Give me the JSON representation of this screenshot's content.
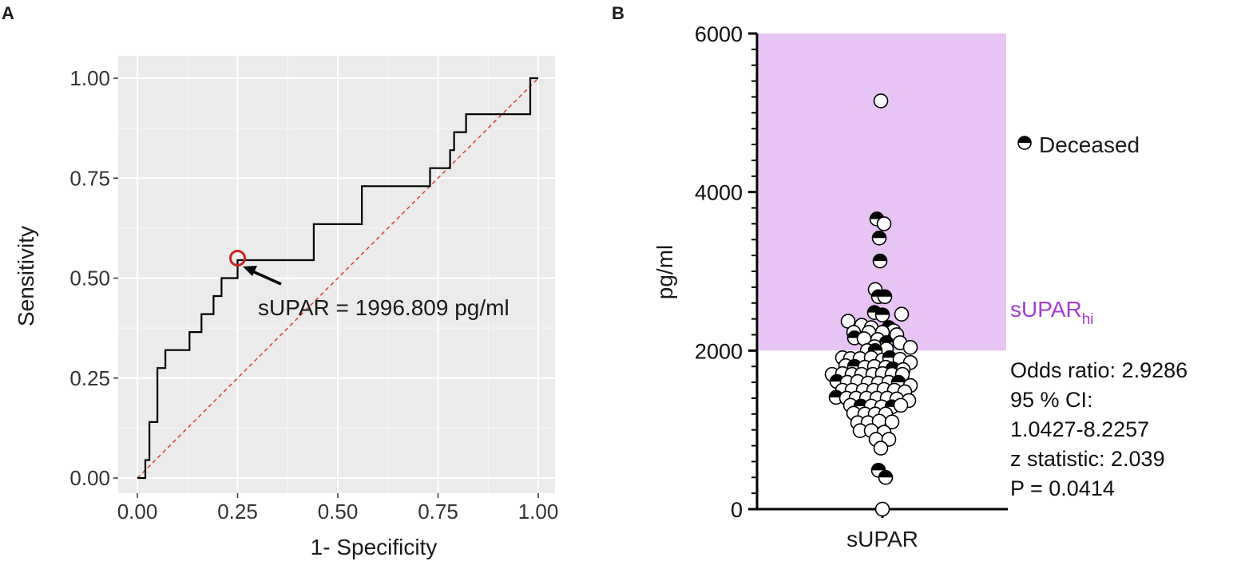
{
  "panels": {
    "a": "A",
    "b": "B"
  },
  "colors": {
    "roc_curve": "#000000",
    "diagonal": "#d9473f",
    "marker": "#cc2222",
    "panel_bg": "#ebebeb",
    "highlight": "#e8c3f5",
    "sUPARhi_label": "#a23fd6"
  },
  "chart_data": [
    {
      "type": "line",
      "panel": "A",
      "title": "",
      "xlabel": "1- Specificity",
      "ylabel": "Sensitivity",
      "xlim": [
        0,
        1
      ],
      "ylim": [
        0,
        1
      ],
      "grid": true,
      "xticks": [
        "0.00",
        "0.25",
        "0.50",
        "0.75",
        "1.00"
      ],
      "yticks": [
        "0.00",
        "0.25",
        "0.50",
        "0.75",
        "1.00"
      ],
      "series": [
        {
          "name": "ROC",
          "x": [
            0,
            0.02,
            0.02,
            0.03,
            0.03,
            0.05,
            0.05,
            0.07,
            0.07,
            0.13,
            0.13,
            0.16,
            0.16,
            0.19,
            0.19,
            0.21,
            0.21,
            0.22,
            0.22,
            0.25,
            0.25,
            0.26,
            0.26,
            0.44,
            0.44,
            0.56,
            0.56,
            0.73,
            0.73,
            0.78,
            0.78,
            0.79,
            0.79,
            0.8,
            0.8,
            0.82,
            0.82,
            0.98,
            0.98,
            1.0
          ],
          "y": [
            0,
            0,
            0.045,
            0.045,
            0.14,
            0.14,
            0.275,
            0.275,
            0.32,
            0.32,
            0.365,
            0.365,
            0.41,
            0.41,
            0.455,
            0.455,
            0.5,
            0.5,
            0.5,
            0.5,
            0.545,
            0.545,
            0.545,
            0.545,
            0.635,
            0.635,
            0.73,
            0.73,
            0.775,
            0.775,
            0.82,
            0.82,
            0.865,
            0.865,
            0.865,
            0.865,
            0.91,
            0.91,
            1.0,
            1.0
          ]
        },
        {
          "name": "reference",
          "x": [
            0,
            1
          ],
          "y": [
            0,
            1
          ]
        }
      ],
      "marker": {
        "x": 0.25,
        "y": 0.55
      },
      "annotation": "sUPAR = 1996.809 pg/ml"
    },
    {
      "type": "scatter",
      "panel": "B",
      "title": "",
      "xlabel": "sUPAR",
      "ylabel": "pg/ml",
      "ylim": [
        0,
        6000
      ],
      "yticks": [
        "0",
        "2000",
        "4000",
        "6000"
      ],
      "highlight_range": [
        2000,
        6000
      ],
      "highlight_label": {
        "main": "sUPAR",
        "sub": "hi"
      },
      "legend": {
        "label": "Deceased",
        "placement": "right"
      },
      "points": [
        {
          "x": -0.02,
          "y": 5150,
          "deceased": false
        },
        {
          "x": -0.07,
          "y": 3660,
          "deceased": true
        },
        {
          "x": 0.02,
          "y": 3600,
          "deceased": false
        },
        {
          "x": -0.04,
          "y": 3420,
          "deceased": true
        },
        {
          "x": -0.03,
          "y": 3130,
          "deceased": true
        },
        {
          "x": -0.09,
          "y": 2770,
          "deceased": false
        },
        {
          "x": -0.05,
          "y": 2680,
          "deceased": true
        },
        {
          "x": 0.03,
          "y": 2680,
          "deceased": true
        },
        {
          "x": -0.1,
          "y": 2480,
          "deceased": true
        },
        {
          "x": 0.0,
          "y": 2450,
          "deceased": true
        },
        {
          "x": 0.24,
          "y": 2460,
          "deceased": false
        },
        {
          "x": -0.43,
          "y": 2370,
          "deceased": false
        },
        {
          "x": -0.26,
          "y": 2320,
          "deceased": false
        },
        {
          "x": -0.14,
          "y": 2290,
          "deceased": false
        },
        {
          "x": 0.08,
          "y": 2290,
          "deceased": true
        },
        {
          "x": 0.14,
          "y": 2250,
          "deceased": false
        },
        {
          "x": -0.36,
          "y": 2230,
          "deceased": false
        },
        {
          "x": -0.17,
          "y": 2230,
          "deceased": false
        },
        {
          "x": 0.0,
          "y": 2230,
          "deceased": false
        },
        {
          "x": 0.18,
          "y": 2200,
          "deceased": false
        },
        {
          "x": -0.35,
          "y": 2160,
          "deceased": true
        },
        {
          "x": -0.23,
          "y": 2150,
          "deceased": false
        },
        {
          "x": -0.06,
          "y": 2140,
          "deceased": false
        },
        {
          "x": 0.05,
          "y": 2100,
          "deceased": true
        },
        {
          "x": 0.22,
          "y": 2100,
          "deceased": false
        },
        {
          "x": -0.1,
          "y": 2050,
          "deceased": false
        },
        {
          "x": 0.05,
          "y": 2020,
          "deceased": false
        },
        {
          "x": 0.35,
          "y": 2040,
          "deceased": false
        },
        {
          "x": -0.19,
          "y": 2000,
          "deceased": false
        },
        {
          "x": -0.09,
          "y": 2000,
          "deceased": true
        },
        {
          "x": -0.5,
          "y": 1910,
          "deceased": false
        },
        {
          "x": -0.4,
          "y": 1900,
          "deceased": false
        },
        {
          "x": -0.28,
          "y": 1900,
          "deceased": false
        },
        {
          "x": -0.14,
          "y": 1910,
          "deceased": false
        },
        {
          "x": 0.0,
          "y": 1880,
          "deceased": false
        },
        {
          "x": 0.09,
          "y": 1910,
          "deceased": true
        },
        {
          "x": 0.22,
          "y": 1890,
          "deceased": false
        },
        {
          "x": 0.35,
          "y": 1850,
          "deceased": false
        },
        {
          "x": -0.46,
          "y": 1810,
          "deceased": false
        },
        {
          "x": -0.35,
          "y": 1800,
          "deceased": true
        },
        {
          "x": -0.22,
          "y": 1790,
          "deceased": false
        },
        {
          "x": -0.1,
          "y": 1800,
          "deceased": false
        },
        {
          "x": 0.04,
          "y": 1790,
          "deceased": false
        },
        {
          "x": 0.13,
          "y": 1770,
          "deceased": true
        },
        {
          "x": 0.26,
          "y": 1760,
          "deceased": false
        },
        {
          "x": -0.63,
          "y": 1700,
          "deceased": false
        },
        {
          "x": -0.5,
          "y": 1710,
          "deceased": false
        },
        {
          "x": -0.38,
          "y": 1700,
          "deceased": false
        },
        {
          "x": -0.26,
          "y": 1700,
          "deceased": false
        },
        {
          "x": -0.12,
          "y": 1700,
          "deceased": false
        },
        {
          "x": 0.0,
          "y": 1710,
          "deceased": false
        },
        {
          "x": 0.12,
          "y": 1700,
          "deceased": false
        },
        {
          "x": 0.25,
          "y": 1700,
          "deceased": false
        },
        {
          "x": -0.57,
          "y": 1610,
          "deceased": true
        },
        {
          "x": -0.44,
          "y": 1600,
          "deceased": false
        },
        {
          "x": -0.31,
          "y": 1610,
          "deceased": false
        },
        {
          "x": -0.18,
          "y": 1590,
          "deceased": false
        },
        {
          "x": -0.05,
          "y": 1590,
          "deceased": false
        },
        {
          "x": 0.08,
          "y": 1600,
          "deceased": false
        },
        {
          "x": 0.2,
          "y": 1600,
          "deceased": true
        },
        {
          "x": 0.35,
          "y": 1560,
          "deceased": false
        },
        {
          "x": -0.5,
          "y": 1500,
          "deceased": false
        },
        {
          "x": -0.38,
          "y": 1500,
          "deceased": false
        },
        {
          "x": -0.24,
          "y": 1500,
          "deceased": false
        },
        {
          "x": -0.11,
          "y": 1500,
          "deceased": false
        },
        {
          "x": 0.02,
          "y": 1510,
          "deceased": false
        },
        {
          "x": 0.15,
          "y": 1500,
          "deceased": false
        },
        {
          "x": 0.28,
          "y": 1480,
          "deceased": false
        },
        {
          "x": -0.58,
          "y": 1410,
          "deceased": true
        },
        {
          "x": -0.45,
          "y": 1400,
          "deceased": false
        },
        {
          "x": -0.33,
          "y": 1400,
          "deceased": false
        },
        {
          "x": -0.2,
          "y": 1400,
          "deceased": false
        },
        {
          "x": -0.07,
          "y": 1400,
          "deceased": false
        },
        {
          "x": 0.06,
          "y": 1400,
          "deceased": false
        },
        {
          "x": 0.18,
          "y": 1390,
          "deceased": false
        },
        {
          "x": 0.33,
          "y": 1370,
          "deceased": false
        },
        {
          "x": -0.4,
          "y": 1310,
          "deceased": false
        },
        {
          "x": -0.27,
          "y": 1300,
          "deceased": true
        },
        {
          "x": -0.14,
          "y": 1300,
          "deceased": false
        },
        {
          "x": -0.01,
          "y": 1290,
          "deceased": false
        },
        {
          "x": 0.12,
          "y": 1290,
          "deceased": true
        },
        {
          "x": 0.23,
          "y": 1310,
          "deceased": false
        },
        {
          "x": -0.36,
          "y": 1210,
          "deceased": false
        },
        {
          "x": -0.22,
          "y": 1200,
          "deceased": false
        },
        {
          "x": -0.09,
          "y": 1200,
          "deceased": false
        },
        {
          "x": 0.04,
          "y": 1200,
          "deceased": false
        },
        {
          "x": -0.31,
          "y": 1090,
          "deceased": false
        },
        {
          "x": -0.18,
          "y": 1090,
          "deceased": false
        },
        {
          "x": -0.04,
          "y": 1110,
          "deceased": false
        },
        {
          "x": 0.12,
          "y": 1100,
          "deceased": false
        },
        {
          "x": -0.28,
          "y": 990,
          "deceased": false
        },
        {
          "x": -0.14,
          "y": 990,
          "deceased": false
        },
        {
          "x": 0.02,
          "y": 970,
          "deceased": false
        },
        {
          "x": -0.08,
          "y": 880,
          "deceased": false
        },
        {
          "x": 0.08,
          "y": 880,
          "deceased": false
        },
        {
          "x": -0.02,
          "y": 770,
          "deceased": false
        },
        {
          "x": -0.05,
          "y": 490,
          "deceased": true
        },
        {
          "x": 0.04,
          "y": 400,
          "deceased": true
        },
        {
          "x": 0.0,
          "y": 0,
          "deceased": false
        }
      ],
      "stats": [
        "Odds ratio: 2.9286",
        "95 % CI:",
        "1.0427-8.2257",
        "z statistic: 2.039",
        "P = 0.0414"
      ]
    }
  ]
}
